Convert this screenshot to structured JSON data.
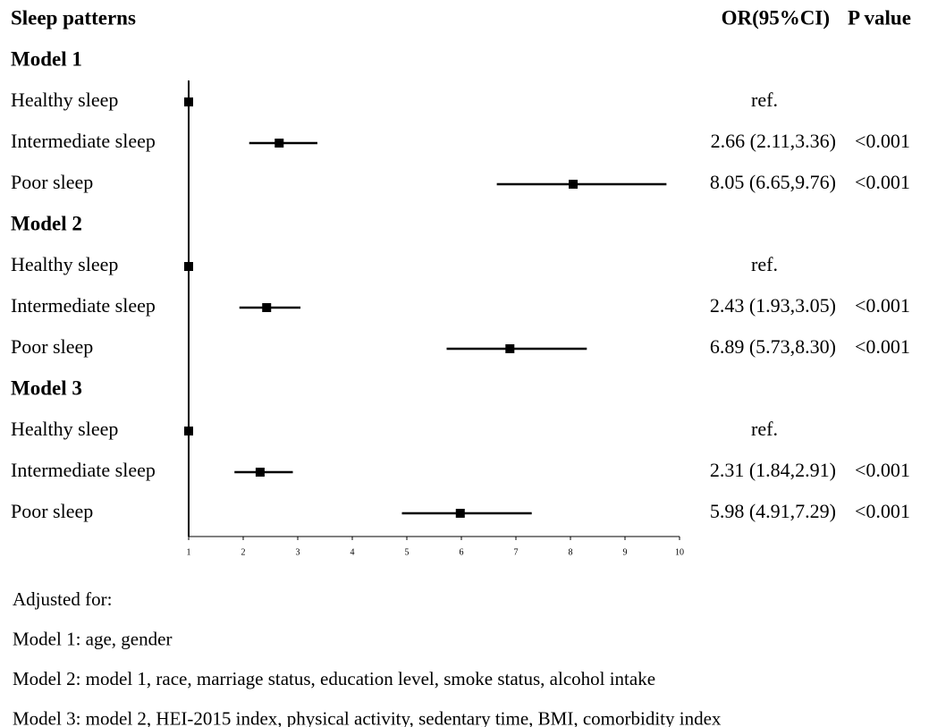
{
  "chart_data": {
    "type": "forest",
    "header": "Sleep patterns",
    "estimate_header": "OR(95%CI)",
    "p_header": "P value",
    "groups": [
      {
        "name": "Model 1",
        "rows": [
          {
            "label": "Healthy sleep",
            "value": 1,
            "value_label": "ref."
          },
          {
            "label": "Intermediate sleep",
            "value": 2.66,
            "ci": [
              2.11,
              3.36
            ],
            "value_label": "2.66 (2.11,3.36)",
            "p": "<0.001"
          },
          {
            "label": "Poor sleep",
            "value": 8.05,
            "ci": [
              6.65,
              9.76
            ],
            "value_label": "8.05 (6.65,9.76)",
            "p": "<0.001"
          }
        ]
      },
      {
        "name": "Model 2",
        "rows": [
          {
            "label": "Healthy sleep",
            "value": 1,
            "value_label": "ref."
          },
          {
            "label": "Intermediate sleep",
            "value": 2.43,
            "ci": [
              1.93,
              3.05
            ],
            "value_label": "2.43 (1.93,3.05)",
            "p": "<0.001"
          },
          {
            "label": "Poor sleep",
            "value": 6.89,
            "ci": [
              5.73,
              8.3
            ],
            "value_label": "6.89 (5.73,8.30)",
            "p": "<0.001"
          }
        ]
      },
      {
        "name": "Model 3",
        "rows": [
          {
            "label": "Healthy sleep",
            "value": 1,
            "value_label": "ref."
          },
          {
            "label": "Intermediate sleep",
            "value": 2.31,
            "ci": [
              1.84,
              2.91
            ],
            "value_label": "2.31 (1.84,2.91)",
            "p": "<0.001"
          },
          {
            "label": "Poor sleep",
            "value": 5.98,
            "ci": [
              4.91,
              7.29
            ],
            "value_label": "5.98 (4.91,7.29)",
            "p": "<0.001"
          }
        ]
      }
    ],
    "xlim": [
      1,
      10
    ],
    "xticks": [
      1,
      2,
      3,
      4,
      5,
      6,
      7,
      8,
      9,
      10
    ],
    "color": "#000000",
    "footnotes": [
      "Adjusted for:",
      "Model 1: age, gender",
      "Model 2: model 1, race, marriage status, education level, smoke status, alcohol intake",
      "Model 3: model 2, HEI-2015 index, physical activity, sedentary time, BMI, comorbidity index"
    ]
  }
}
